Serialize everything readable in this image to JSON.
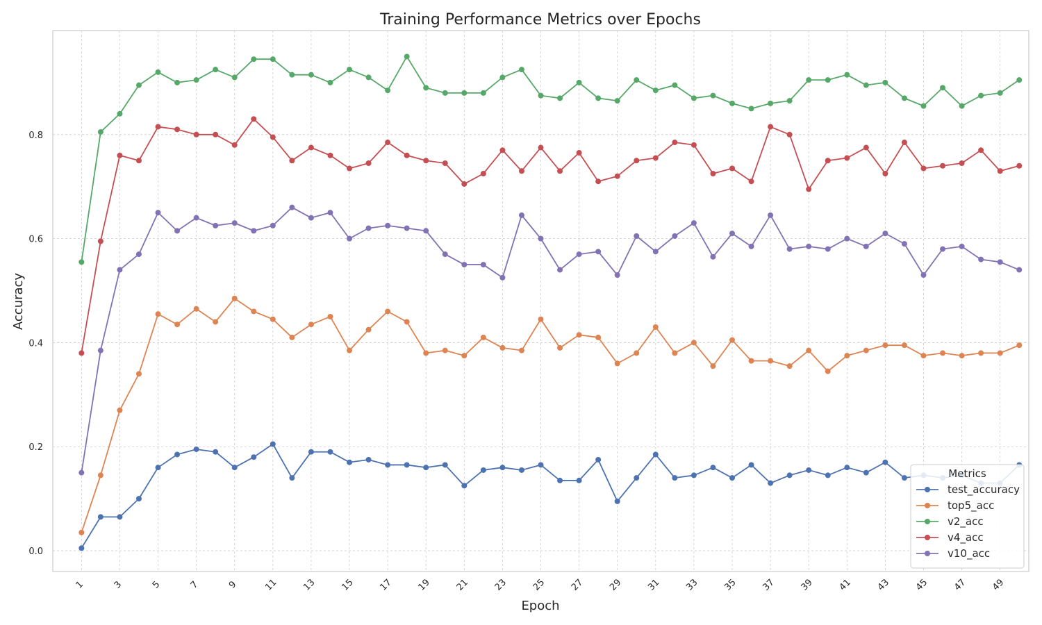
{
  "chart_data": {
    "type": "line",
    "title": "Training Performance Metrics over Epochs",
    "xlabel": "Epoch",
    "ylabel": "Accuracy",
    "xlim": [
      -0.5,
      50.5
    ],
    "ylim": [
      -0.04,
      1.0
    ],
    "x_ticks": [
      1,
      3,
      5,
      7,
      9,
      11,
      13,
      15,
      17,
      19,
      21,
      23,
      25,
      27,
      29,
      31,
      33,
      35,
      37,
      39,
      41,
      43,
      45,
      47,
      49
    ],
    "y_ticks": [
      0.0,
      0.2,
      0.4,
      0.6,
      0.8
    ],
    "grid": true,
    "legend": {
      "title": "Metrics",
      "placement": "bottom-right"
    },
    "x": [
      1,
      2,
      3,
      4,
      5,
      6,
      7,
      8,
      9,
      10,
      11,
      12,
      13,
      14,
      15,
      16,
      17,
      18,
      19,
      20,
      21,
      22,
      23,
      24,
      25,
      26,
      27,
      28,
      29,
      30,
      31,
      32,
      33,
      34,
      35,
      36,
      37,
      38,
      39,
      40,
      41,
      42,
      43,
      44,
      45,
      46,
      47,
      48,
      49,
      50
    ],
    "series": [
      {
        "name": "test_accuracy",
        "color": "#4c72b0",
        "values": [
          0.005,
          0.065,
          0.065,
          0.1,
          0.16,
          0.185,
          0.195,
          0.19,
          0.16,
          0.18,
          0.205,
          0.14,
          0.19,
          0.19,
          0.17,
          0.175,
          0.165,
          0.165,
          0.16,
          0.165,
          0.125,
          0.155,
          0.16,
          0.155,
          0.165,
          0.135,
          0.135,
          0.175,
          0.095,
          0.14,
          0.185,
          0.14,
          0.145,
          0.16,
          0.14,
          0.165,
          0.13,
          0.145,
          0.155,
          0.145,
          0.16,
          0.15,
          0.17,
          0.14,
          0.145,
          0.14,
          0.145,
          0.13,
          0.13,
          0.165
        ]
      },
      {
        "name": "top5_acc",
        "color": "#dd8452",
        "values": [
          0.035,
          0.145,
          0.27,
          0.34,
          0.455,
          0.435,
          0.465,
          0.44,
          0.485,
          0.46,
          0.445,
          0.41,
          0.435,
          0.45,
          0.385,
          0.425,
          0.46,
          0.44,
          0.38,
          0.385,
          0.375,
          0.41,
          0.39,
          0.385,
          0.445,
          0.39,
          0.415,
          0.41,
          0.36,
          0.38,
          0.43,
          0.38,
          0.4,
          0.355,
          0.405,
          0.365,
          0.365,
          0.355,
          0.385,
          0.345,
          0.375,
          0.385,
          0.395,
          0.395,
          0.375,
          0.38,
          0.375,
          0.38,
          0.38,
          0.395
        ]
      },
      {
        "name": "v2_acc",
        "color": "#55a868",
        "values": [
          0.555,
          0.805,
          0.84,
          0.895,
          0.92,
          0.9,
          0.905,
          0.925,
          0.91,
          0.945,
          0.945,
          0.915,
          0.915,
          0.9,
          0.925,
          0.91,
          0.885,
          0.95,
          0.89,
          0.88,
          0.88,
          0.88,
          0.91,
          0.925,
          0.875,
          0.87,
          0.9,
          0.87,
          0.865,
          0.905,
          0.885,
          0.895,
          0.87,
          0.875,
          0.86,
          0.85,
          0.86,
          0.865,
          0.905,
          0.905,
          0.915,
          0.895,
          0.9,
          0.87,
          0.855,
          0.89,
          0.855,
          0.875,
          0.88,
          0.905
        ]
      },
      {
        "name": "v4_acc",
        "color": "#c44e52",
        "values": [
          0.38,
          0.595,
          0.76,
          0.75,
          0.815,
          0.81,
          0.8,
          0.8,
          0.78,
          0.83,
          0.795,
          0.75,
          0.775,
          0.76,
          0.735,
          0.745,
          0.785,
          0.76,
          0.75,
          0.745,
          0.705,
          0.725,
          0.77,
          0.73,
          0.775,
          0.73,
          0.765,
          0.71,
          0.72,
          0.75,
          0.755,
          0.785,
          0.78,
          0.725,
          0.735,
          0.71,
          0.815,
          0.8,
          0.695,
          0.75,
          0.755,
          0.775,
          0.725,
          0.785,
          0.735,
          0.74,
          0.745,
          0.77,
          0.73,
          0.74
        ]
      },
      {
        "name": "v10_acc",
        "color": "#8172b3",
        "values": [
          0.15,
          0.385,
          0.54,
          0.57,
          0.65,
          0.615,
          0.64,
          0.625,
          0.63,
          0.615,
          0.625,
          0.66,
          0.64,
          0.65,
          0.6,
          0.62,
          0.625,
          0.62,
          0.615,
          0.57,
          0.55,
          0.55,
          0.525,
          0.645,
          0.6,
          0.54,
          0.57,
          0.575,
          0.53,
          0.605,
          0.575,
          0.605,
          0.63,
          0.565,
          0.61,
          0.585,
          0.645,
          0.58,
          0.585,
          0.58,
          0.6,
          0.585,
          0.61,
          0.59,
          0.53,
          0.58,
          0.585,
          0.56,
          0.555,
          0.54
        ]
      }
    ]
  }
}
